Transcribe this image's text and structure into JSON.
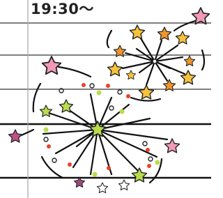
{
  "header": {
    "title": "19:30〜"
  }
}
